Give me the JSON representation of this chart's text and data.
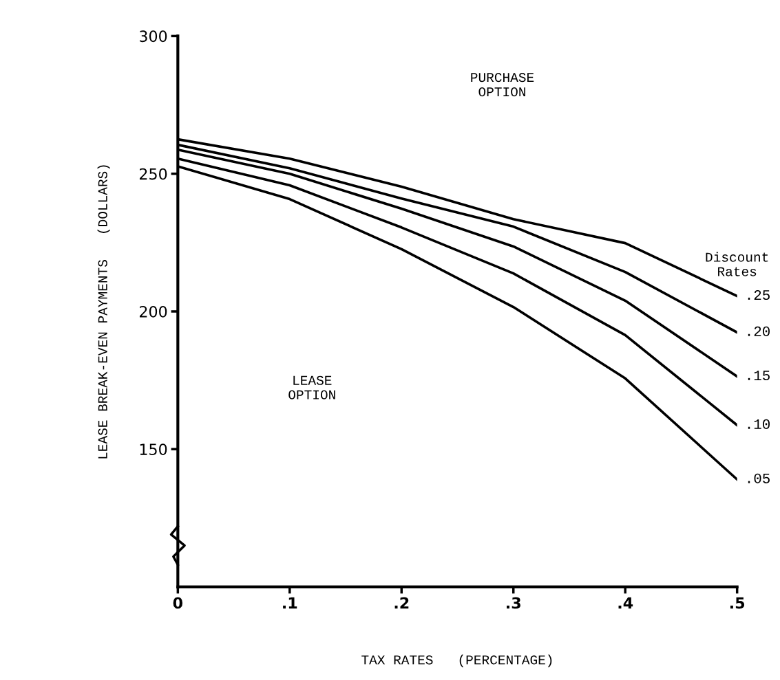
{
  "chart_data": {
    "type": "line",
    "xlabel": "TAX RATES   (PERCENTAGE)",
    "ylabel": "LEASE BREAK-EVEN PAYMENTS   (DOLLARS)",
    "legend_title": "Discount\nRates",
    "x": [
      0,
      0.1,
      0.2,
      0.3,
      0.4,
      0.5
    ],
    "series": [
      {
        "name": ".25",
        "color": "#000000",
        "values": [
          262.5,
          255.5,
          245.3,
          233.5,
          224.8,
          205.6
        ]
      },
      {
        "name": ".20",
        "color": "#000000",
        "values": [
          260.5,
          252,
          241,
          230.8,
          214.3,
          192.4
        ]
      },
      {
        "name": ".15",
        "color": "#000000",
        "values": [
          258.7,
          250,
          237.3,
          223.6,
          203.9,
          176.4
        ]
      },
      {
        "name": ".10",
        "color": "#000000",
        "values": [
          255.5,
          245.8,
          230.5,
          213.8,
          191.4,
          158.7
        ]
      },
      {
        "name": ".05",
        "color": "#000000",
        "values": [
          252.7,
          240.8,
          222.6,
          201.6,
          175.7,
          139
        ]
      }
    ],
    "annotations": [
      "PURCHASE\nOPTION",
      "LEASE\nOPTION"
    ],
    "xlim": [
      0,
      0.5
    ],
    "ylim": [
      100,
      300
    ],
    "xticks": [
      0,
      {
        "value": 0.1,
        "label": ".1"
      },
      {
        "value": 0.2,
        "label": ".2"
      },
      {
        "value": 0.3,
        "label": ".3"
      },
      {
        "value": 0.4,
        "label": ".4"
      },
      {
        "value": 0.5,
        "label": ".5"
      }
    ],
    "yticks": [
      150,
      200,
      250,
      300
    ],
    "grid": false,
    "legend": "right",
    "marker": "none",
    "line_style": "solid"
  }
}
